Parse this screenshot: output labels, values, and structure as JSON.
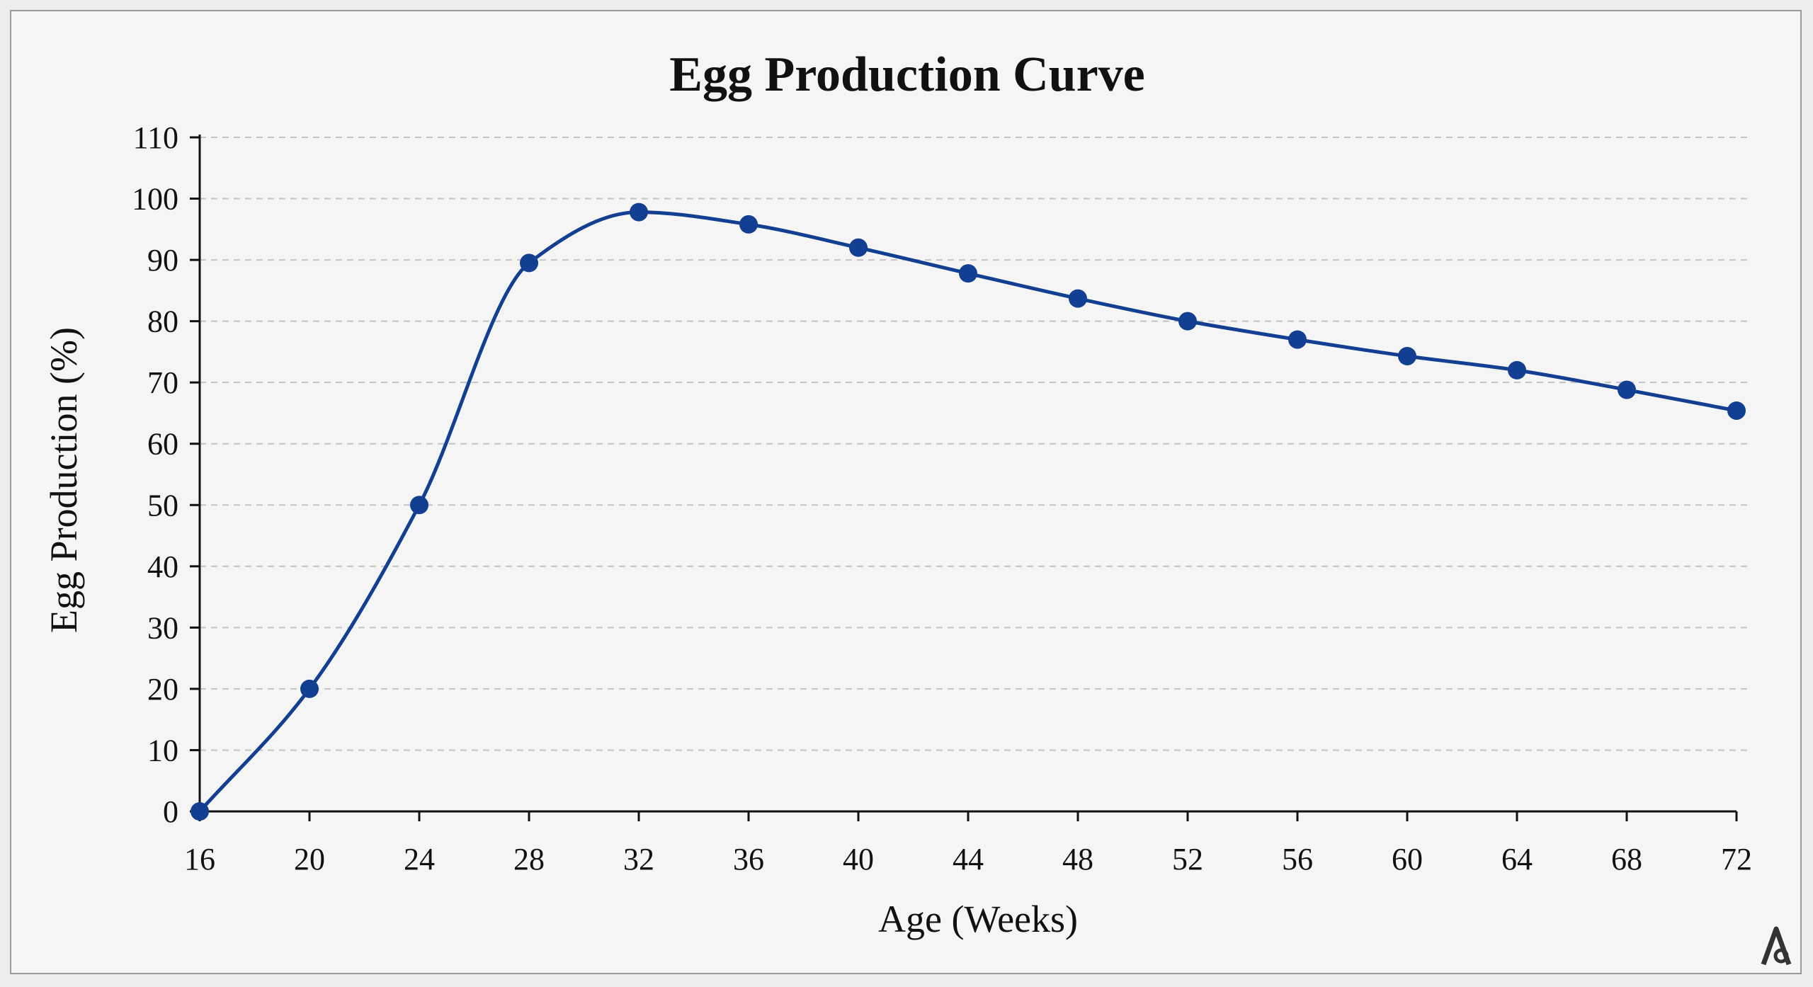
{
  "chart_data": {
    "type": "line",
    "title": "Egg Production Curve",
    "xlabel": "Age (Weeks)",
    "ylabel": "Egg Production (%)",
    "x": [
      16,
      20,
      24,
      28,
      32,
      36,
      40,
      44,
      48,
      52,
      56,
      60,
      64,
      68,
      72
    ],
    "series": [
      {
        "values": [
          0,
          20,
          50,
          89.5,
          97.8,
          95.8,
          92,
          87.8,
          83.7,
          80,
          77,
          74.3,
          72,
          68.8,
          65.4
        ]
      }
    ],
    "xlim": [
      16,
      72
    ],
    "ylim": [
      0,
      110
    ],
    "xticks": [
      16,
      20,
      24,
      28,
      32,
      36,
      40,
      44,
      48,
      52,
      56,
      60,
      64,
      68,
      72
    ],
    "yticks": [
      0,
      10,
      20,
      30,
      40,
      50,
      60,
      70,
      80,
      90,
      100,
      110
    ],
    "grid": true,
    "legend": "none",
    "colors": {
      "line": "#123f91",
      "marker": "#123f91",
      "grid": "#c4c4c4",
      "background": "#f5f5f5"
    },
    "smooth": true
  }
}
